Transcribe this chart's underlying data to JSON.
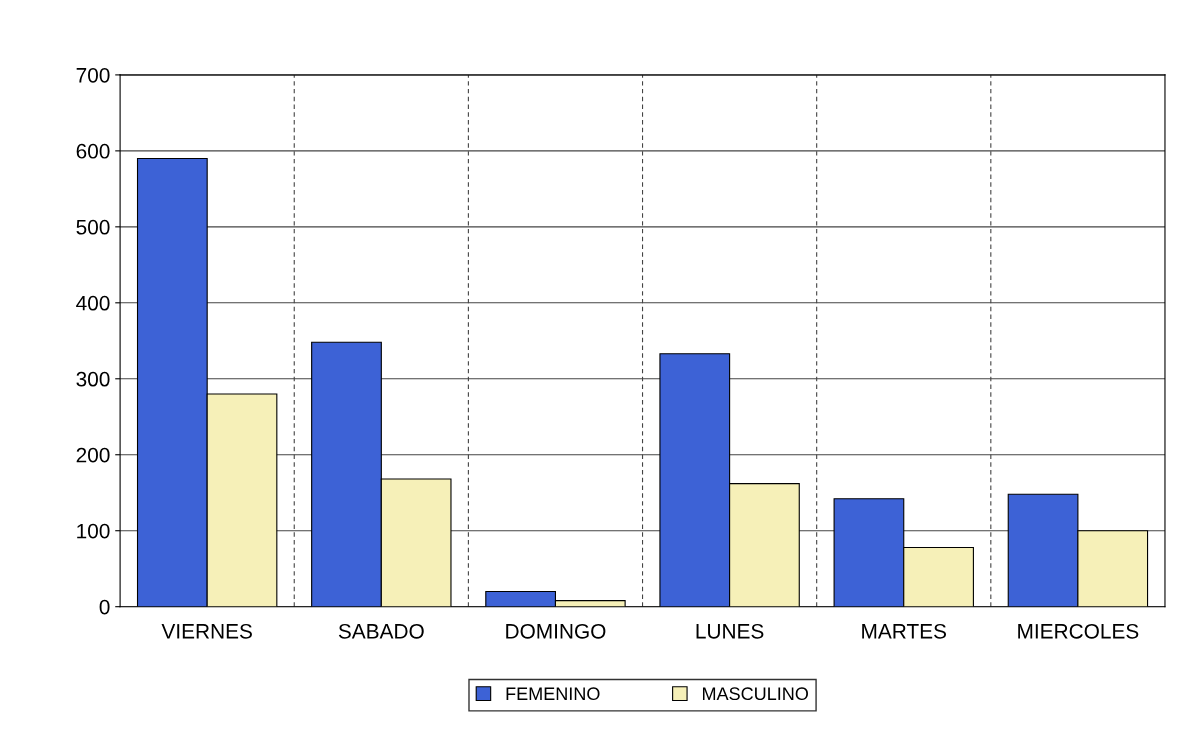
{
  "chart_data": {
    "type": "bar",
    "categories": [
      "VIERNES",
      "SABADO",
      "DOMINGO",
      "LUNES",
      "MARTES",
      "MIERCOLES"
    ],
    "series": [
      {
        "name": "FEMENINO",
        "color": "#3d62d6",
        "values": [
          590,
          348,
          20,
          333,
          142,
          148
        ]
      },
      {
        "name": "MASCULINO",
        "color": "#f6f0b8",
        "values": [
          280,
          168,
          8,
          162,
          78,
          100
        ]
      }
    ],
    "ylim": [
      0,
      700
    ],
    "yticks": [
      0,
      100,
      200,
      300,
      400,
      500,
      600,
      700
    ],
    "grid": true,
    "legend": "bottom"
  }
}
